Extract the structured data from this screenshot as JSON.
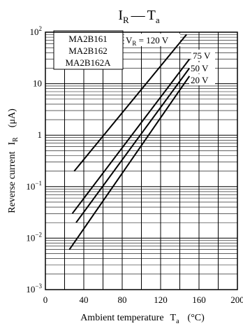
{
  "chart_data": {
    "type": "line",
    "title": {
      "main": "I",
      "main_sub": "R",
      "dash": "—",
      "second": "T",
      "second_sub": "a"
    },
    "xlabel": {
      "text": "Ambient temperature",
      "symbol": "T",
      "symbol_sub": "a",
      "unit": "(°C)"
    },
    "ylabel": {
      "text": "Reverse current",
      "symbol": "I",
      "symbol_sub": "R",
      "unit": "(μA)"
    },
    "x_scale": "linear",
    "y_scale": "log",
    "xlim": [
      0,
      200
    ],
    "ylim": [
      0.001,
      100
    ],
    "x_ticks": [
      0,
      40,
      80,
      120,
      160,
      200
    ],
    "x_tick_labels": [
      "0",
      "40",
      "80",
      "120",
      "160",
      "200"
    ],
    "y_ticks": [
      0.001,
      0.01,
      0.1,
      1,
      10,
      100
    ],
    "y_tick_labels": [
      {
        "base": "10",
        "exp": "−3"
      },
      {
        "base": "10",
        "exp": "−2"
      },
      {
        "base": "10",
        "exp": "−1"
      },
      {
        "base": "1",
        "exp": ""
      },
      {
        "base": "10",
        "exp": ""
      },
      {
        "base": "10",
        "exp": "2"
      }
    ],
    "grid": true,
    "legend_box": {
      "lines": [
        "MA2B161",
        "MA2B162",
        "MA2B162A"
      ],
      "placement": "top-left"
    },
    "series": [
      {
        "name": "V",
        "name_sub": "R",
        "name_suffix": " = 120 V",
        "x": [
          30,
          147
        ],
        "y": [
          0.2,
          90
        ]
      },
      {
        "name": "75 V",
        "x": [
          28,
          150
        ],
        "y": [
          0.03,
          30
        ]
      },
      {
        "name": "50 V",
        "x": [
          32,
          150
        ],
        "y": [
          0.02,
          20
        ]
      },
      {
        "name": "20 V",
        "x": [
          25,
          150
        ],
        "y": [
          0.006,
          14
        ]
      }
    ]
  }
}
